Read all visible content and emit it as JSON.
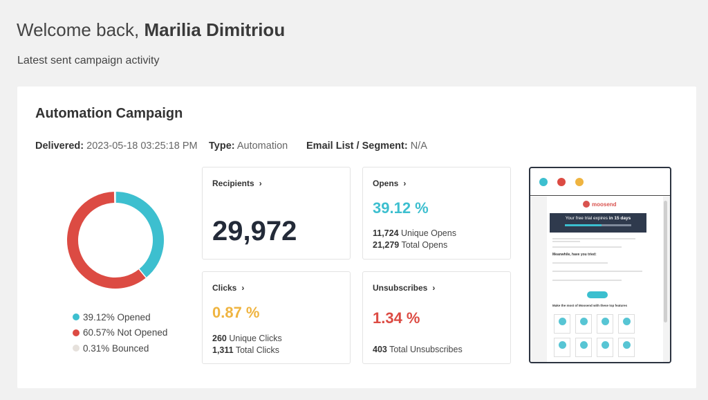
{
  "header": {
    "welcome_prefix": "Welcome back,",
    "user_name": "Marilia Dimitriou",
    "subtitle": "Latest sent campaign activity"
  },
  "campaign": {
    "title": "Automation Campaign",
    "delivered_label": "Delivered:",
    "delivered_value": "2023-05-18 03:25:18 PM",
    "type_label": "Type:",
    "type_value": "Automation",
    "list_label": "Email List / Segment:",
    "list_value": "N/A"
  },
  "chart_data": {
    "type": "pie",
    "categories": [
      "Opened",
      "Not Opened",
      "Bounced"
    ],
    "values": [
      39.12,
      60.57,
      0.31
    ],
    "colors": [
      "#3dbfcf",
      "#dc4b43",
      "#e6e1dc"
    ],
    "legend_labels": [
      "39.12% Opened",
      "60.57% Not Opened",
      "0.31% Bounced"
    ]
  },
  "stats": {
    "recipients": {
      "label": "Recipients",
      "value": "29,972"
    },
    "opens": {
      "label": "Opens",
      "pct": "39.12 %",
      "color": "#3dbfcf",
      "line1_num": "11,724",
      "line1_text": "Unique Opens",
      "line2_num": "21,279",
      "line2_text": "Total Opens"
    },
    "clicks": {
      "label": "Clicks",
      "pct": "0.87 %",
      "color": "#efb440",
      "line1_num": "260",
      "line1_text": "Unique Clicks",
      "line2_num": "1,311",
      "line2_text": "Total Clicks"
    },
    "unsubscribes": {
      "label": "Unsubscribes",
      "pct": "1.34 %",
      "color": "#dc4b43",
      "line1_num": "403",
      "line1_text": "Total Unsubscribes"
    }
  },
  "preview": {
    "dot_colors": [
      "#3dbfcf",
      "#dc4b43",
      "#efb440"
    ],
    "logo_text": "moosend",
    "banner_text_prefix": "Your free trial expires",
    "banner_text_bold": "in 15 days",
    "section1_title": "Meanwhile, have you tried:",
    "section2_title": "Make the most of Moosend with these top features"
  }
}
